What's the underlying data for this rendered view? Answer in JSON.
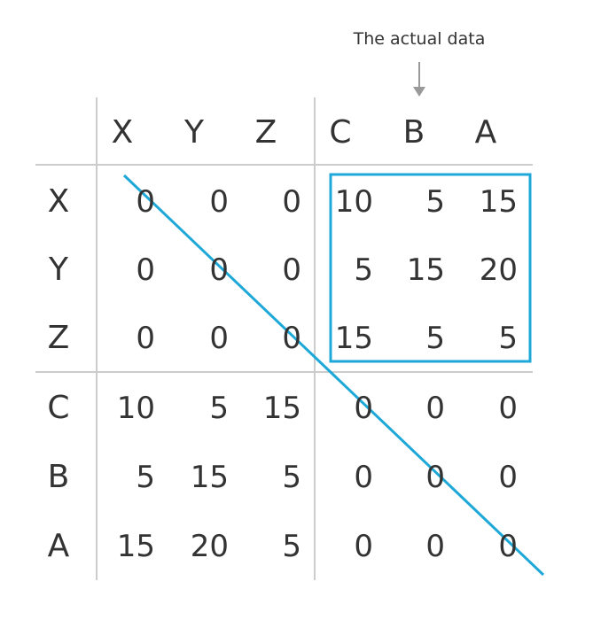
{
  "annotation": "The actual data",
  "column_headers": [
    "X",
    "Y",
    "Z",
    "C",
    "B",
    "A"
  ],
  "row_headers": [
    "X",
    "Y",
    "Z",
    "C",
    "B",
    "A"
  ],
  "matrix": [
    [
      "0",
      "0",
      "0",
      "10",
      "5",
      "15"
    ],
    [
      "0",
      "0",
      "0",
      "5",
      "15",
      "20"
    ],
    [
      "0",
      "0",
      "0",
      "15",
      "5",
      "5"
    ],
    [
      "10",
      "5",
      "15",
      "0",
      "0",
      "0"
    ],
    [
      "5",
      "15",
      "5",
      "0",
      "0",
      "0"
    ],
    [
      "15",
      "20",
      "5",
      "0",
      "0",
      "0"
    ]
  ],
  "colors": {
    "text": "#333333",
    "grid": "#cccccc",
    "arrow": "#999999",
    "highlight": "#1ea8d8"
  }
}
